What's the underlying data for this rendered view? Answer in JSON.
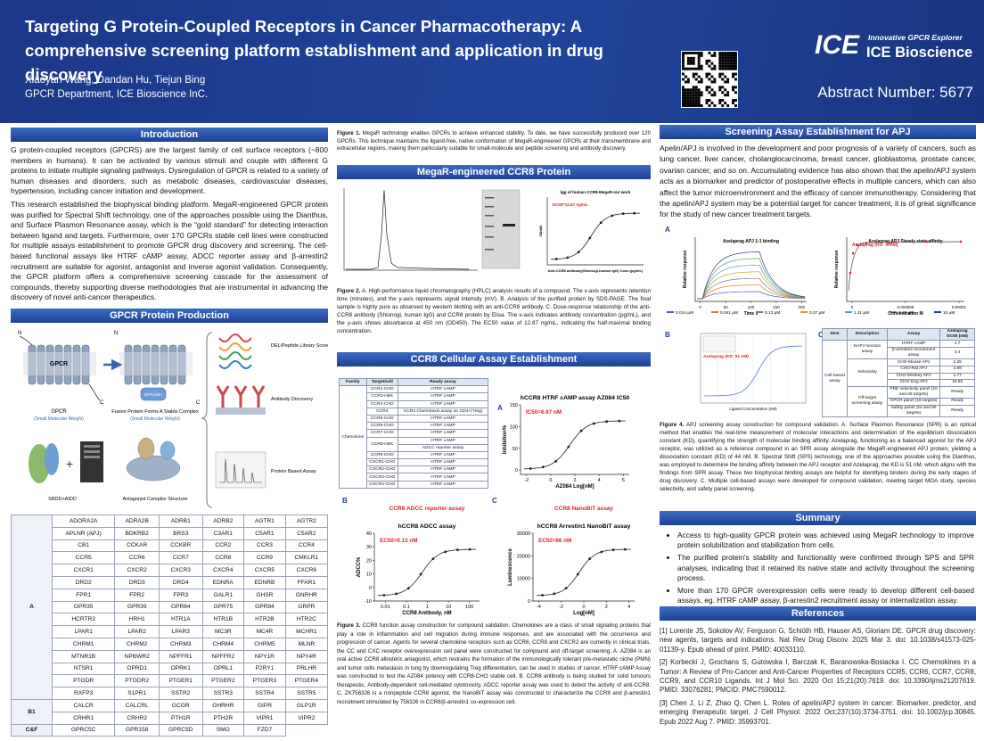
{
  "header": {
    "title": "Targeting G Protein-Coupled Receptors in Cancer Pharmacotherapy: A comprehensive screening platform establishment and application in drug discovery",
    "authors": "Xiaoyan Wang, Dandan Hu, Tiejun Bing",
    "affiliation": "GPCR Department, ICE Bioscience InC.",
    "logo_mark": "ICE",
    "logo_tagline": "Innovative GPCR Explorer",
    "logo_name": "ICE Bioscience",
    "abstract_number": "Abstract Number: 5677"
  },
  "intro": {
    "heading": "Introduction",
    "paragraphs": [
      "G protein-coupled receptors (GPCRS) are the largest family of cell surface receptors (~800 members in humans). It can be activated by various stimuli and couple with different G proteins to initiate multiple signaling pathways. Dysregulation of GPCR is related to a variety of human diseases and disorders, such as metabolic diseases, cardiovascular diseases, hypertension, including cancer initiation and development.",
      "This research established the biophysical binding platform. MegaR-engineered GPCR protein was purified for Spectral Shift technology, one of the approaches possible using the Dianthus, and Surface Plasmon Resonance assay, which is the “gold standard” for detecting interaction between ligand and targets. Furthermore, over 170 GPCRs stable cell lines were constructed for multiple assays establishment to promote GPCR drug discovery and screening. The cell-based functional assays like HTRF cAMP assay, ADCC reporter assay and β-arrestin2 recruitment are suitable for agonist, antagonist and inverse agonist validation. Consequently, the GPCR platform offers a comprehensive screening cascade for the assessment of compounds, thereby supporting diverse methodologies that are instrumental in advancing the discovery of novel anti-cancer therapeutics."
    ]
  },
  "production": {
    "heading": "GPCR Protein Production",
    "diagram": {
      "n": "N",
      "c": "C",
      "gpcr": "GPCR",
      "gpcr_note": "(Small Molecular Weight)",
      "fusion": "Fusion Protein Forms A Stable Complex",
      "fusion_note": "(Small Molecular Weight)",
      "mprotein": "M-Protein",
      "del": "DEL/Peptide Library Screening",
      "antibody": "Antibody Discovery",
      "protein_assay": "Protein Based Assay",
      "sbdd": "SBDD+AIDD",
      "antagonist": "Antagonist Complex Structure"
    },
    "table": {
      "groups": [
        {
          "name": "A",
          "rows": [
            [
              "ADORA2A",
              "ADRA2B",
              "ADRB1",
              "ADRB2",
              "AGTR1",
              "AGTR2"
            ],
            [
              "APLNR (APJ)",
              "BDKRB2",
              "BRS3",
              "C3AR1",
              "C5AR1",
              "C5AR2"
            ],
            [
              "CB1",
              "CCKAR",
              "CCKBR",
              "CCR2",
              "CCR3",
              "CCR4"
            ],
            [
              "CCR5",
              "CCR6",
              "CCR7",
              "CCR8",
              "CCR9",
              "CMKLR1"
            ],
            [
              "CXCR1",
              "CXCR2",
              "CXCR3",
              "CXCR4",
              "CXCR5",
              "CXCR6"
            ],
            [
              "DRD2",
              "DRD3",
              "DRD4",
              "EDNRA",
              "EDNRB",
              "FFAR1"
            ],
            [
              "FPR1",
              "FPR2",
              "FPR3",
              "GALR1",
              "GHSR",
              "GNRHR"
            ],
            [
              "GPR35",
              "GPR39",
              "GPR84",
              "GPR75",
              "GPR84",
              "GRPR"
            ],
            [
              "HCRTR2",
              "HRH1",
              "HTR1A",
              "HTR1B",
              "HTR2B",
              "HTR2C"
            ],
            [
              "LPAR1",
              "LPAR2",
              "LPAR3",
              "MC3R",
              "MC4R",
              "MCHR1"
            ],
            [
              "CHRM1",
              "CHRM2",
              "CHRM3",
              "CHRM4",
              "CHRM5",
              "MLNR"
            ],
            [
              "MTNR1B",
              "NPBWR2",
              "NPFFR1",
              "NPFFR2",
              "NPY1R",
              "NPY4R"
            ],
            [
              "NTSR1",
              "OPRD1",
              "OPRK1",
              "OPRL1",
              "P2RY1",
              "PRLHR"
            ],
            [
              "PTGDR",
              "PTGDR2",
              "PTGER1",
              "PTGER2",
              "PTGER3",
              "PTGER4"
            ],
            [
              "RXFP3",
              "S1PR1",
              "SSTR2",
              "SSTR3",
              "SSTR4",
              "SSTR5"
            ]
          ]
        },
        {
          "name": "B1",
          "rows": [
            [
              "CALCR",
              "CALCRL",
              "GCGR",
              "GHRHR",
              "GIPR",
              "GLP1R"
            ],
            [
              "CRHR1",
              "CRHR2",
              "PTH1R",
              "PTH2R",
              "VIPR1",
              "VIPR2"
            ]
          ]
        },
        {
          "name": "C&F",
          "rows": [
            [
              "GPRC5C",
              "GPR158",
              "GPRC5D",
              "SMO",
              "FZD7"
            ]
          ]
        }
      ]
    }
  },
  "megar": {
    "figure1": {
      "label": "Figure 1.",
      "text": "MegaR technology enables GPCRs to achieve enhanced stability. To date, we have successfully produced over 120 GPCRs. This technique maintains the ligand-free, native conformation of MegaR-engineered GPCRs at their transmembrane and extracellular regions, making them particularly suitable for small-molecule and peptide screening and antibody discovery."
    },
    "heading": "MegaR-engineered CCR8 Protein",
    "elisa": {
      "title": "lgg of human CCR8-MegaR-our work",
      "annotation": "EC50=12.87 ng/mL",
      "xlabel": "Anti-CCR8 antibody(Shionogi,human IgG) Conc.(pg/mL)",
      "ylabel": "OD450"
    },
    "figure2": {
      "label": "Figure 2.",
      "text": "A. High-performance liquid chromatography (HPLC) analysis results of a compound. The x-axis represents retention time (minutes), and the y-axis represents signal intensity (mV). B. Analysis of the purified protein by SDS-PAGE. The final sample is highly pure as observed by western blotting with an anti-CCR8 antibody. C. Dose-response relationship of the anti-CCR8 antibody (Shionogi, human IgG) and CCR8 protein by Elisa. The x-axis indicates antibody concentration (pg/mL), and the y-axis shows absorbance at 450 nm (OD450). The EC50 value of 12.87 ng/mL, indicating the half-maximal binding concentration."
    }
  },
  "ccr8": {
    "heading": "CCR8 Cellular Assay Establishment",
    "table": {
      "headers": [
        "Family",
        "Target/cell",
        "Ready assay"
      ],
      "family": "Chemokine",
      "rows": [
        {
          "target": "CCR1-CHO",
          "assays": [
            "HTRF cAMP"
          ]
        },
        {
          "target": "CCR3-HEK",
          "assays": [
            "HTRF cAMP"
          ]
        },
        {
          "target": "CCR4-CHO",
          "assays": [
            "HTRF cAMP"
          ]
        },
        {
          "target": "CCR4",
          "assays": [
            "CCR4 Chemotaxis assay on CD4+(Treg)"
          ]
        },
        {
          "target": "CCR5-CHO",
          "assays": [
            "HTRF cAMP"
          ]
        },
        {
          "target": "CCR6-CHO",
          "assays": [
            "HTRF cAMP"
          ]
        },
        {
          "target": "CCR7-CHO",
          "assays": [
            "HTRF cAMP"
          ]
        },
        {
          "target": "CCR8-HEK",
          "assays": [
            "HTRF cAMP",
            "ADCC reporter assay"
          ]
        },
        {
          "target": "CCR9-CHO",
          "assays": [
            "HTRF cAMP"
          ]
        },
        {
          "target": "CXCR1-CHO",
          "assays": [
            "HTRF cAMP"
          ]
        },
        {
          "target": "CXCR2-CHO",
          "assays": [
            "HTRF cAMP"
          ]
        },
        {
          "target": "CXCR3-CHO",
          "assays": [
            "HTRF cAMP"
          ]
        },
        {
          "target": "CXCR4-CHO",
          "assays": [
            "HTRF cAMP"
          ]
        }
      ]
    },
    "charts": [
      {
        "label": "A",
        "title": "hCCR8 HTRF cAMP assay AZ084 IC50",
        "annotation": "IC50=6.67 nM",
        "ylabel": "Inhibition%",
        "xlabel": "AZ084 Log[nM]",
        "xlim": [
          -2.5,
          6.5
        ],
        "ylim": [
          -10,
          150
        ],
        "xticks": [
          -2,
          0,
          2,
          4,
          6
        ],
        "yticks": [
          0,
          50,
          100,
          150
        ]
      },
      {
        "label": "B",
        "subtitle": "CCR8 ADCC reporter assay",
        "title": "hCCR8 ADCC assay",
        "annotation": "EC50=0.13 nM",
        "ylabel": "ADCC%",
        "xlabel": "CCR8 Antibody, nM",
        "xlog": true,
        "xlim": [
          0.003,
          300
        ],
        "ylim": [
          -10,
          40
        ],
        "xticks": [
          0.01,
          0.1,
          1,
          10,
          100
        ],
        "yticks": [
          -10,
          0,
          10,
          20,
          30,
          40
        ]
      },
      {
        "label": "C",
        "subtitle": "CCR8 NanoBiT assay",
        "title": "hCCR8 Arrestin1 NanoBiT assay",
        "annotation": "EC50=66 nM",
        "ylabel": "Luminescence",
        "xlabel": "Log[nM]",
        "xlim": [
          -4.5,
          4.5
        ],
        "ylim": [
          0,
          30000
        ],
        "xticks": [
          -4,
          -2,
          0,
          2,
          4
        ],
        "yticks": [
          0,
          10000,
          20000,
          30000
        ]
      }
    ],
    "figure3": {
      "label": "Figure 3.",
      "text": "CCR8 function assay construction for compound validation. Chemokines are a class of small signaling proteins that play a role in inflammation and cell migration during immune responses, and are associated with the occurrence and progression of cancer. Agents for several chemokine receptors such as CCR6, CCR8 and CXCR2 are currently in clinical trials, the CC and CXC receptor overexpression cell panel were constructed for compound and off-target screening. A. AZ084 is an oral active CCR8 allosteric antagonist, which restrains the formation of the immunologically tolerant pre-metastatic niche (PMN) and tumor cells metastasis in lung by downregulating Treg differentiation, can be used in studies of cancer. HTRF cAMP Assay was constructed to test the AZ084 potency with CCR8-CHO stable cell. B. CCR8 antibody is being studied for solid tumours therapeutic, Antibody-dependent cell-mediated cytotoxicity, ADCC reporter assay was used to detect the activity of anti-CCR8. C. ZK756326 is a nonpeptide CCR8 agonist, the NanoBiT assay was constructed to characterize the CCR8 and β-arrestin1 recruitment stimulated by 756326 in CCR8/β-arrestin1 co-expression cell."
    }
  },
  "apj": {
    "heading": "Screening Assay Establishment for APJ",
    "paragraph": "Apelin/APJ is involved in the development and poor prognosis of a variety of cancers, such as lung cancer, liver cancer, cholangiocarcinoma, breast cancer, glioblastoma, prostate cancer, ovarian cancer, and so on. Accumulating evidence has also shown that the apelin/APJ system acts as a biomarker and predictor of postoperative effects in multiple cancers, which can also affect the tumor microenvironment and the efficacy of cancer immunotherapy. Considering that the apelin/APJ system may be a potential target for cancer treatment, it is of great significance for the study of new cancer treatment targets.",
    "panel_a": {
      "label": "A",
      "binding": {
        "title": "Azelaprag APJ 1:1 binding",
        "ylabel": "Relative response",
        "xlabel": "Time s",
        "xlim": [
          -10,
          210
        ],
        "xticks": [
          0,
          50,
          100,
          150,
          200
        ]
      },
      "affinity": {
        "title": "Azelaprag APJ Steady state affinity",
        "annotation": "Azelaprag (KD: 44nM)",
        "ylabel": "Relative response",
        "xlabel": "Concentration M",
        "xlim": [
          -5e-07,
          1.05e-05
        ],
        "xticks": [
          0,
          5e-06,
          1e-05
        ]
      },
      "legend": [
        {
          "name": "0.014 μM",
          "color": "#3a5fcd"
        },
        {
          "name": "0.041 μM",
          "color": "#e07b20"
        },
        {
          "name": "0.12 μM",
          "color": "#7a7a7a"
        },
        {
          "name": "0.37 μM",
          "color": "#d4a017"
        },
        {
          "name": "1.11 μM",
          "color": "#4f9fd6"
        },
        {
          "name": "3.33 μM",
          "color": "#5aa845"
        },
        {
          "name": "10 μM",
          "color": "#1f3f8f"
        }
      ]
    },
    "panel_b": {
      "label": "B",
      "annotation": "Azelaprag (KD: 51 nM)",
      "xlabel": "Ligand Concentration (nM)"
    },
    "panel_c": {
      "label": "C",
      "headers": [
        "Item",
        "Description",
        "Assay",
        "Azelaprag EC50 (nM)"
      ],
      "item": "Cell based assay",
      "groups": [
        {
          "description": "NAPJ function assay",
          "rows": [
            {
              "assay": "HTRF cAMP",
              "value": 1.7
            },
            {
              "assay": "β-arrestin2 recruitment assay",
              "value": 3.4
            }
          ]
        },
        {
          "description": "Selectivity",
          "rows": [
            {
              "assay": "CHO-Mouse APJ",
              "value": 2.25
            },
            {
              "assay": "CHO-Rat APJ",
              "value": 2.69
            },
            {
              "assay": "CHO-Monkey APJ",
              "value": 1.77
            },
            {
              "assay": "CHO-Dog APJ",
              "value": 16.85
            }
          ]
        },
        {
          "description": "Off-target screening assay",
          "rows": [
            {
              "assay": "PDE selectivity panel (10 and 26 targets)",
              "value": "Ready"
            },
            {
              "assay": "GPCR panel (15 targets)",
              "value": "Ready"
            },
            {
              "assay": "Safety panel (44 and 56 targets)",
              "value": "Ready"
            }
          ]
        }
      ]
    },
    "figure4": {
      "label": "Figure 4.",
      "text": "APJ screening assay construction for compound validation. A. Surface Plasmon Resonance (SPR) is an optical method that enables the real-time measurement of molecular interactions and determination of the equilibrium dissociation constant (KD), quantifying the strength of molecular binding affinity. Azelaprag, functioning as a balanced agonist for the APJ receptor, was utilized as a reference compound in an SPR assay alongside the MegaR-engineered APJ protein, yielding a dissociation constant (KD) of 44 nM. B. Spectral Shift (SPS) technology, one of the approaches possible using the Dianthus, was employed to determine the binding affinity between the APJ receptor and Azelaprag, the KD is 51 nM, which aligns with the findings from SPR assay. These two biophysical binding assays are helpful for identifying binders during the early stages of drug discovery. C. Multiple cell-based assays were developed for compound validation, meeting target MOA study, species selectivity, and safety panel screening."
    }
  },
  "summary": {
    "heading": "Summary",
    "bullets": [
      "Access to high-quality GPCR protein was achieved using MegaR technology to improve protein solubilization and stabilization from cells.",
      "The purified protein's stability and functionality were confirmed through SPS and SPR analyses, indicating that it retained its native state and activity throughout the screening process.",
      "More than 170 GPCR overexpression cells were ready to develop different cell-based assays, eg. HTRF cAMP assay, β-arrestin2 recruitment assay or internalization assay."
    ]
  },
  "references": {
    "heading": "References",
    "items": [
      "[1] Lorente JS, Sokolov AV, Ferguson G, Schiöth HB, Hauser AS, Gloriam DE. GPCR drug discovery: new agents, targets and indications. Nat Rev Drug Discov. 2025 Mar 3. doi: 10.1038/s41573-025-01139-y. Epub ahead of print. PMID: 40033110.",
      "[2] Korbecki J, Grochans S, Gutowska I, Barczak K, Baranowska-Bosiacka I. CC Chemokines in a Tumor: A Review of Pro-Cancer and Anti-Cancer Properties of Receptors CCR5, CCR6, CCR7, CCR8, CCR9, and CCR10 Ligands. Int J Mol Sci. 2020 Oct 15;21(20):7619. doi: 10.3390/ijms21207619. PMID: 33076281; PMCID: PMC7590012.",
      "[3] Chen J, Li Z, Zhao Q, Chen L. Roles of apelin/APJ system in cancer: Biomarker, predictor, and emerging therapeutic target. J Cell Physiol. 2022 Oct;237(10):3734-3751. doi: 10.1002/jcp.30845. Epub 2022 Aug 7. PMID: 35993701."
    ]
  }
}
